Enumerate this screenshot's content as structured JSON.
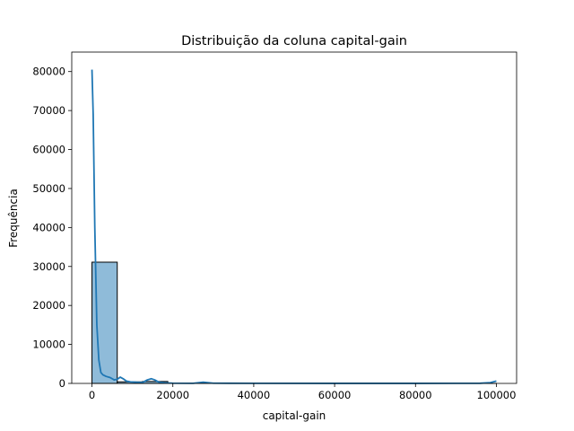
{
  "chart_data": {
    "type": "histogram",
    "title": "Distribuição da coluna capital-gain",
    "xlabel": "capital-gain",
    "ylabel": "Frequência",
    "xlim": [
      -5000,
      105000
    ],
    "ylim": [
      0,
      85000
    ],
    "xticks": [
      0,
      20000,
      40000,
      60000,
      80000,
      100000
    ],
    "xtick_labels": [
      "0",
      "20000",
      "40000",
      "60000",
      "80000",
      "100000"
    ],
    "yticks": [
      0,
      10000,
      20000,
      30000,
      40000,
      50000,
      60000,
      70000,
      80000
    ],
    "ytick_labels": [
      "0",
      "10000",
      "20000",
      "30000",
      "40000",
      "50000",
      "60000",
      "70000",
      "80000"
    ],
    "bin_edges": [
      0,
      6250,
      12500,
      18750,
      25000,
      31250,
      37500,
      43750,
      50000,
      56250,
      62500,
      68750,
      75000,
      81250,
      87500,
      93750,
      100000
    ],
    "counts": [
      31100,
      400,
      500,
      30,
      5,
      3,
      2,
      2,
      2,
      2,
      2,
      2,
      2,
      2,
      2,
      2
    ],
    "kde": {
      "x": [
        0,
        300,
        700,
        1200,
        1700,
        2200,
        2700,
        3500,
        4500,
        5500,
        6300,
        7000,
        7700,
        8500,
        9500,
        11000,
        12500,
        13700,
        14700,
        15500,
        16500,
        18000,
        20000,
        25000,
        27500,
        30000,
        40000,
        60000,
        80000,
        96000,
        98500,
        100000
      ],
      "y": [
        80500,
        69000,
        40000,
        15000,
        6000,
        2800,
        2200,
        1800,
        1500,
        900,
        1100,
        1600,
        1200,
        600,
        400,
        300,
        250,
        900,
        1200,
        900,
        350,
        150,
        60,
        30,
        300,
        60,
        20,
        10,
        10,
        40,
        200,
        600
      ]
    },
    "bar_fill": "#1f77b4",
    "bar_fill_opacity": 0.5,
    "bar_edge": "#000000",
    "line_color": "#1f77b4",
    "grid": false,
    "legend": false
  }
}
